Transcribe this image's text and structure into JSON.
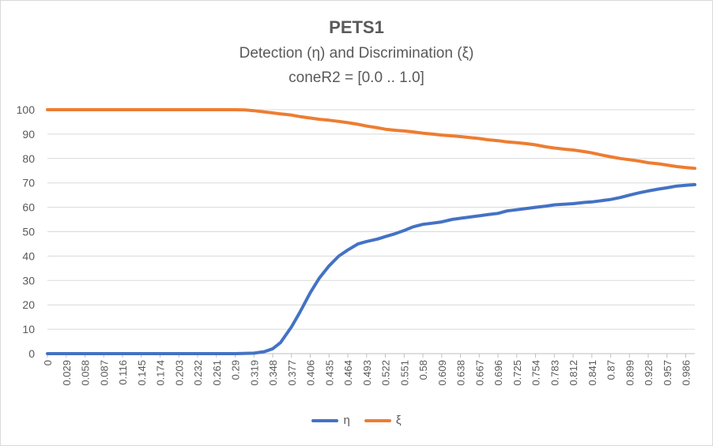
{
  "chart_data": {
    "type": "line",
    "title": "PETS1",
    "subtitle": "Detection (η) and Discrimination (ξ)",
    "subtitle2": "coneR2 = [0.0 .. 1.0]",
    "ylim": [
      0,
      100
    ],
    "yticks": [
      0,
      10,
      20,
      30,
      40,
      50,
      60,
      70,
      80,
      90,
      100
    ],
    "xlim": [
      0,
      1.0
    ],
    "xticks": [
      0,
      0.029,
      0.058,
      0.087,
      0.116,
      0.145,
      0.174,
      0.203,
      0.232,
      0.261,
      0.29,
      0.319,
      0.348,
      0.377,
      0.406,
      0.435,
      0.464,
      0.493,
      0.522,
      0.551,
      0.58,
      0.609,
      0.638,
      0.667,
      0.696,
      0.725,
      0.754,
      0.783,
      0.812,
      0.841,
      0.87,
      0.899,
      0.928,
      0.957,
      0.986
    ],
    "grid": true,
    "legend_position": "bottom",
    "series": [
      {
        "name": "η",
        "color": "#4472C4",
        "points": [
          [
            0,
            0
          ],
          [
            0.29,
            0
          ],
          [
            0.319,
            0.2
          ],
          [
            0.335,
            0.8
          ],
          [
            0.348,
            2
          ],
          [
            0.36,
            4.5
          ],
          [
            0.377,
            11
          ],
          [
            0.39,
            17
          ],
          [
            0.406,
            25
          ],
          [
            0.42,
            31
          ],
          [
            0.435,
            36
          ],
          [
            0.45,
            40
          ],
          [
            0.464,
            42.5
          ],
          [
            0.48,
            45
          ],
          [
            0.493,
            46
          ],
          [
            0.51,
            47
          ],
          [
            0.522,
            48
          ],
          [
            0.535,
            49
          ],
          [
            0.551,
            50.5
          ],
          [
            0.565,
            52
          ],
          [
            0.58,
            53
          ],
          [
            0.595,
            53.5
          ],
          [
            0.609,
            54
          ],
          [
            0.625,
            55
          ],
          [
            0.638,
            55.5
          ],
          [
            0.652,
            56
          ],
          [
            0.667,
            56.5
          ],
          [
            0.68,
            57
          ],
          [
            0.696,
            57.5
          ],
          [
            0.71,
            58.5
          ],
          [
            0.725,
            59
          ],
          [
            0.74,
            59.5
          ],
          [
            0.754,
            60
          ],
          [
            0.77,
            60.5
          ],
          [
            0.783,
            61
          ],
          [
            0.8,
            61.3
          ],
          [
            0.812,
            61.5
          ],
          [
            0.83,
            62
          ],
          [
            0.841,
            62.2
          ],
          [
            0.855,
            62.7
          ],
          [
            0.87,
            63.2
          ],
          [
            0.885,
            64
          ],
          [
            0.899,
            65
          ],
          [
            0.915,
            66
          ],
          [
            0.928,
            66.7
          ],
          [
            0.945,
            67.5
          ],
          [
            0.957,
            68
          ],
          [
            0.972,
            68.7
          ],
          [
            0.986,
            69
          ],
          [
            1.0,
            69.3
          ]
        ]
      },
      {
        "name": "ξ",
        "color": "#ED7D31",
        "points": [
          [
            0,
            100
          ],
          [
            0.29,
            100
          ],
          [
            0.305,
            99.9
          ],
          [
            0.319,
            99.6
          ],
          [
            0.335,
            99.1
          ],
          [
            0.348,
            98.7
          ],
          [
            0.36,
            98.3
          ],
          [
            0.377,
            97.8
          ],
          [
            0.39,
            97.2
          ],
          [
            0.406,
            96.6
          ],
          [
            0.42,
            96.1
          ],
          [
            0.435,
            95.7
          ],
          [
            0.45,
            95.2
          ],
          [
            0.464,
            94.7
          ],
          [
            0.48,
            94
          ],
          [
            0.493,
            93.3
          ],
          [
            0.51,
            92.6
          ],
          [
            0.522,
            92
          ],
          [
            0.54,
            91.5
          ],
          [
            0.551,
            91.3
          ],
          [
            0.565,
            90.9
          ],
          [
            0.58,
            90.4
          ],
          [
            0.595,
            90
          ],
          [
            0.609,
            89.6
          ],
          [
            0.625,
            89.3
          ],
          [
            0.638,
            89
          ],
          [
            0.652,
            88.6
          ],
          [
            0.667,
            88.2
          ],
          [
            0.68,
            87.7
          ],
          [
            0.696,
            87.3
          ],
          [
            0.71,
            86.8
          ],
          [
            0.725,
            86.5
          ],
          [
            0.74,
            86.1
          ],
          [
            0.754,
            85.6
          ],
          [
            0.77,
            84.8
          ],
          [
            0.783,
            84.3
          ],
          [
            0.8,
            83.8
          ],
          [
            0.812,
            83.5
          ],
          [
            0.83,
            82.8
          ],
          [
            0.841,
            82.3
          ],
          [
            0.855,
            81.5
          ],
          [
            0.87,
            80.7
          ],
          [
            0.885,
            80
          ],
          [
            0.899,
            79.5
          ],
          [
            0.915,
            78.9
          ],
          [
            0.928,
            78.3
          ],
          [
            0.945,
            77.8
          ],
          [
            0.957,
            77.3
          ],
          [
            0.972,
            76.7
          ],
          [
            0.986,
            76.3
          ],
          [
            1.0,
            76
          ]
        ]
      }
    ]
  }
}
